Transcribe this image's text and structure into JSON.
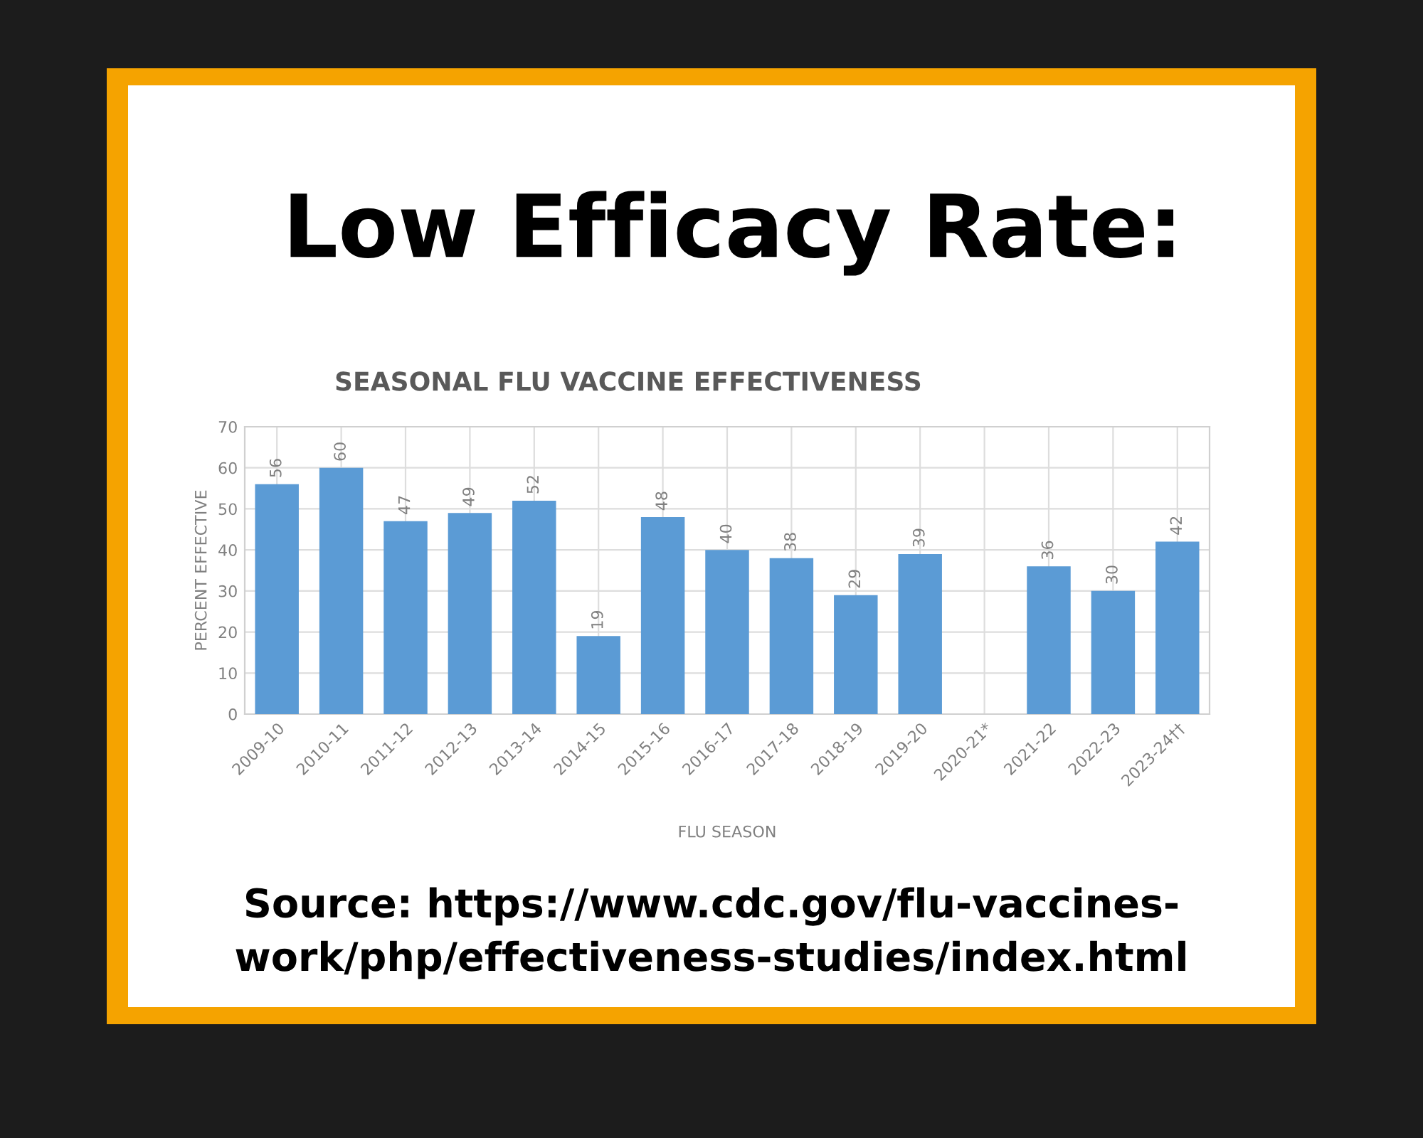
{
  "chart_data": {
    "type": "bar",
    "title": "Low Efficacy Rate:",
    "subtitle": "SEASONAL FLU VACCINE EFFECTIVENESS",
    "xlabel": "FLU SEASON",
    "ylabel": "PERCENT EFFECTIVE",
    "categories": [
      "2009-10",
      "2010-11",
      "2011-12",
      "2012-13",
      "2013-14",
      "2014-15",
      "2015-16",
      "2016-17",
      "2017-18",
      "2018-19",
      "2019-20",
      "2020-21*",
      "2021-22",
      "2022-23",
      "2023-24††"
    ],
    "values": [
      56,
      60,
      47,
      49,
      52,
      19,
      48,
      40,
      38,
      29,
      39,
      null,
      36,
      30,
      42
    ],
    "color": "#5b9bd5",
    "ylim": [
      0,
      70
    ],
    "yticks": [
      0,
      10,
      20,
      30,
      40,
      50,
      60,
      70
    ],
    "grid": true,
    "data_labels": true,
    "annotations": [
      "Source: https://www.cdc.gov/flu-vaccines-\nwork/php/effectiveness-studies/index.html"
    ]
  }
}
